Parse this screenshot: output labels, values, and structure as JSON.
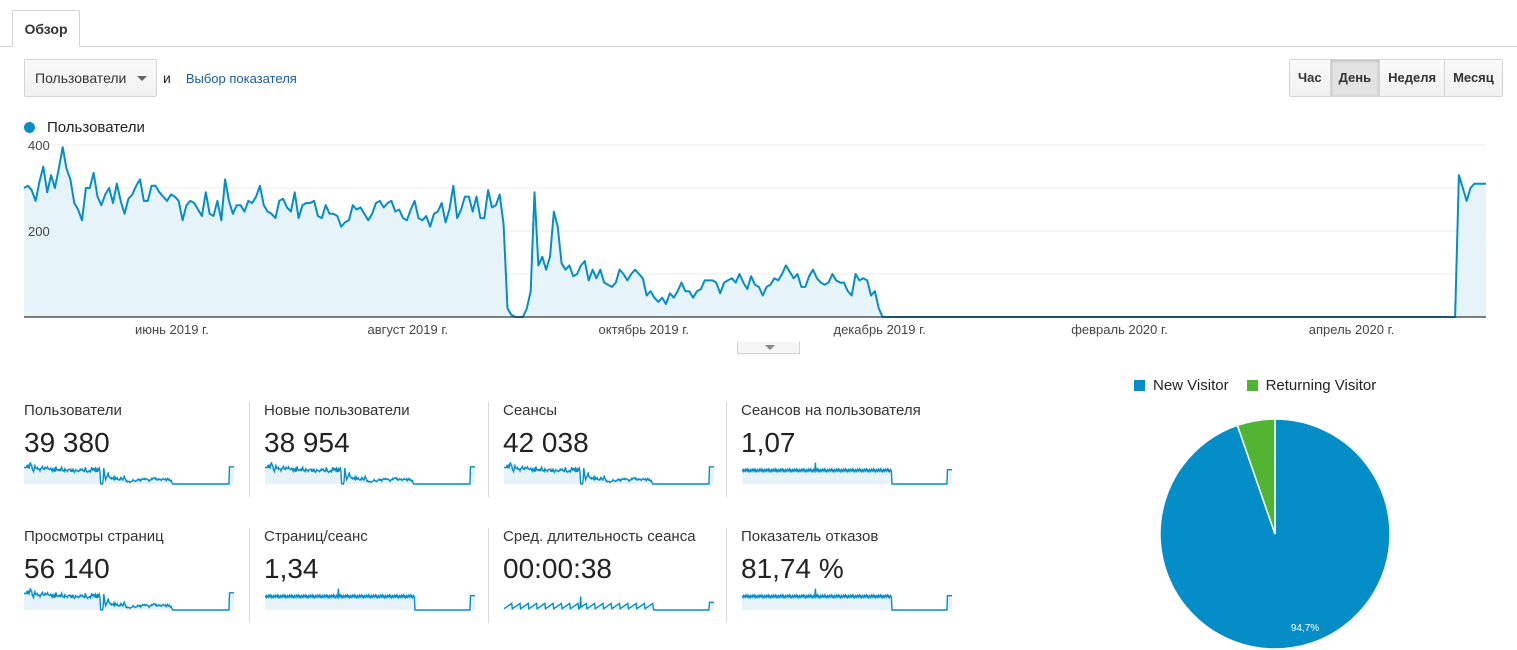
{
  "tab": {
    "label": "Обзор"
  },
  "controls": {
    "metric_select": "Пользователи",
    "and_label": "и",
    "choose_metric_link": "Выбор показателя"
  },
  "periods": [
    {
      "label": "Час",
      "active": false
    },
    {
      "label": "День",
      "active": true
    },
    {
      "label": "Неделя",
      "active": false
    },
    {
      "label": "Месяц",
      "active": false
    }
  ],
  "colors": {
    "accent": "#058dc7",
    "fill": "#e6f3f9",
    "returning": "#50b432",
    "grid": "#eeeeee"
  },
  "icons": {
    "select_caret": "chevron-down-icon",
    "expand": "chevron-down-icon"
  },
  "chart_data": {
    "type": "area",
    "series": [
      {
        "name": "Пользователи",
        "x_start": "2019-05-01",
        "x_end": "2020-05-13",
        "segments": [
          {
            "from": "2019-05-01",
            "to": "2019-09-02",
            "points": [
              300,
              305,
              295,
              300,
              270,
              315,
              350,
              290,
              330,
              280,
              300,
              345,
              395,
              345,
              320,
              340,
              265,
              250,
              225,
              300,
              300,
              335,
              295,
              280,
              260,
              285,
              300,
              265,
              270,
              310,
              270,
              240,
              275,
              285,
              305,
              305,
              320,
              270,
              270,
              305,
              265,
              305,
              290,
              280,
              270,
              285,
              310,
              280,
              270,
              225,
              260,
              270,
              290,
              265,
              250,
              235,
              290,
              240,
              235,
              260,
              270,
              225,
              320,
              270,
              240,
              250,
              260,
              260,
              245,
              270,
              265,
              250,
              280,
              305,
              260,
              245,
              240,
              250,
              230,
              270,
              275,
              255,
              245,
              245,
              290,
              230,
              260,
              265,
              265,
              300,
              270,
              235,
              230,
              260,
              240,
              240,
              265,
              235,
              210,
              220,
              225,
              260,
              245,
              250,
              255,
              240,
              225,
              240,
              240,
              265,
              270,
              255,
              265,
              270,
              240,
              245,
              250,
              230,
              225,
              250,
              305,
              270,
              230,
              225,
              235,
              210,
              230,
              240,
              245,
              265,
              220,
              250,
              305,
              265,
              230,
              250,
              280,
              280,
              245,
              310,
              280,
              230,
              230,
              295,
              255,
              240,
              260,
              285,
              215
            ]
          },
          {
            "from": "2019-09-03",
            "to": "2019-09-09",
            "points": [
              20,
              5,
              0,
              0,
              0,
              20,
              60
            ]
          },
          {
            "from": "2019-09-10",
            "to": "2019-12-10",
            "points": [
              290,
              205,
              120,
              140,
              80,
              110,
              140,
              160,
              245,
              210,
              140,
              125,
              110,
              150,
              120,
              95,
              110,
              100,
              120,
              90,
              130,
              85,
              120,
              110,
              90,
              90,
              110,
              80,
              80,
              75,
              70,
              90,
              80,
              110,
              120,
              100,
              85,
              70,
              100,
              110,
              140,
              100,
              90,
              70,
              50,
              60,
              40,
              45,
              35,
              45,
              45,
              30,
              40,
              55,
              45,
              50,
              60,
              80,
              70,
              60,
              60,
              50,
              45,
              60,
              60,
              65,
              85,
              75,
              85,
              85,
              70,
              80,
              55,
              80,
              80,
              85,
              100,
              90,
              80,
              85,
              100,
              80,
              90,
              65,
              95,
              90,
              75,
              70,
              55,
              50,
              70,
              80,
              75,
              90,
              100,
              85,
              100,
              110,
              120,
              105,
              115,
              90,
              100,
              90,
              70,
              70,
              80,
              95,
              110,
              80,
              90,
              80,
              65,
              75,
              80,
              85,
              100,
              85,
              80,
              80,
              80,
              95,
              60,
              50,
              75,
              100,
              85,
              70,
              90,
              85,
              60,
              50,
              60,
              55,
              20,
              0,
              0,
              0
            ]
          },
          {
            "from": "2019-12-11",
            "to": "2020-05-05",
            "points": [
              0
            ]
          },
          {
            "from": "2020-05-06",
            "to": "2020-05-13",
            "points": [
              330,
              300,
              270,
              300,
              310,
              310,
              310,
              310
            ]
          }
        ]
      }
    ],
    "x_tick_labels": [
      "июнь 2019 г.",
      "август 2019 г.",
      "октябрь 2019 г.",
      "декабрь 2019 г.",
      "февраль 2020 г.",
      "апрель 2020 г."
    ],
    "x_ticks": [
      "2019-06-01",
      "2019-08-01",
      "2019-10-01",
      "2019-12-01",
      "2020-02-01",
      "2020-04-01"
    ],
    "y_tick_labels": [
      "400",
      "200"
    ],
    "y_ticks": [
      400,
      200
    ],
    "ylim": [
      0,
      400
    ],
    "grid": true,
    "legend_position": "top-left"
  },
  "metrics": [
    {
      "label": "Пользователи",
      "value": "39 380",
      "spark": "users"
    },
    {
      "label": "Новые пользователи",
      "value": "38 954",
      "spark": "users"
    },
    {
      "label": "Сеансы",
      "value": "42 038",
      "spark": "users"
    },
    {
      "label": "Сеансов на пользователя",
      "value": "1,07",
      "spark": "ratio"
    },
    {
      "label": "Просмотры страниц",
      "value": "56 140",
      "spark": "users"
    },
    {
      "label": "Страниц/сеанс",
      "value": "1,34",
      "spark": "ratio"
    },
    {
      "label": "Сред. длительность сеанса",
      "value": "00:00:38",
      "spark": "low"
    },
    {
      "label": "Показатель отказов",
      "value": "81,74 %",
      "spark": "ratio"
    }
  ],
  "pie": {
    "type": "pie",
    "slices": [
      {
        "name": "New Visitor",
        "value": 94.7,
        "label": "94,7%",
        "color": "#058dc7"
      },
      {
        "name": "Returning Visitor",
        "value": 5.3,
        "label": "",
        "color": "#50b432"
      }
    ]
  }
}
